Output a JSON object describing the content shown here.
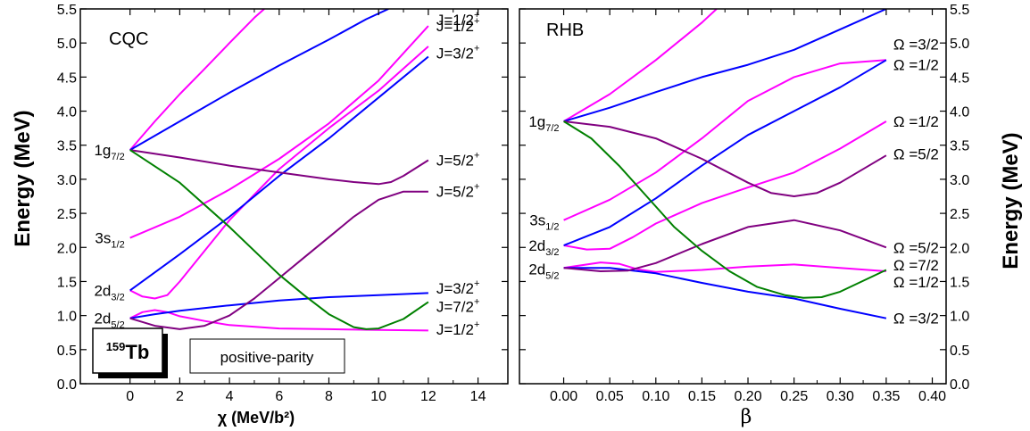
{
  "chart_data": [
    {
      "type": "line",
      "title": "CQC",
      "xlabel": "χ (MeV/b²)",
      "ylabel": "Energy (MeV)",
      "xlim": [
        -2,
        15.2
      ],
      "ylim": [
        0.0,
        5.5
      ],
      "xticks": [
        "0",
        "2",
        "4",
        "6",
        "8",
        "10",
        "12",
        "14"
      ],
      "yticks": [
        "0.0",
        "0.5",
        "1.0",
        "1.5",
        "2.0",
        "2.5",
        "3.0",
        "3.5",
        "4.0",
        "4.5",
        "5.0",
        "5.5"
      ],
      "grid": false,
      "state_labels": [
        {
          "main": "1g",
          "sub": "7/2",
          "y": 3.43
        },
        {
          "main": "3s",
          "sub": "1/2",
          "y": 2.14
        },
        {
          "main": "2d",
          "sub": "3/2",
          "y": 1.37
        },
        {
          "main": "2d",
          "sub": "5/2",
          "y": 0.96
        }
      ],
      "end_labels": [
        {
          "main": "J=1/2",
          "sup": "+",
          "y": 5.6
        },
        {
          "main": "J=1/2",
          "sup": "+",
          "y": 5.25
        },
        {
          "main": "J=3/2",
          "sup": "+",
          "y": 4.85
        },
        {
          "main": "J=5/2",
          "sup": "+",
          "y": 3.28
        },
        {
          "main": "J=5/2",
          "sup": "+",
          "y": 2.82
        },
        {
          "main": "J=3/2",
          "sup": "+",
          "y": 1.4
        },
        {
          "main": "J=7/2",
          "sup": "+",
          "y": 1.13
        },
        {
          "main": "J=1/2",
          "sup": "+",
          "y": 0.8
        }
      ],
      "annotations": {
        "nucleus_mass": "159",
        "nucleus_symbol": "Tb",
        "parity": "positive-parity"
      },
      "series": [
        {
          "color": "#ff00ff",
          "points": [
            [
              0,
              3.43
            ],
            [
              1,
              3.85
            ],
            [
              2,
              4.25
            ],
            [
              3,
              4.62
            ],
            [
              4,
              5.0
            ],
            [
              5,
              5.37
            ],
            [
              5.4,
              5.5
            ]
          ]
        },
        {
          "color": "#ff00ff",
          "points": [
            [
              0,
              2.14
            ],
            [
              2,
              2.45
            ],
            [
              4,
              2.85
            ],
            [
              6,
              3.3
            ],
            [
              8,
              3.82
            ],
            [
              10,
              4.45
            ],
            [
              12,
              5.25
            ]
          ]
        },
        {
          "color": "#ff00ff",
          "points": [
            [
              0,
              1.37
            ],
            [
              0.5,
              1.28
            ],
            [
              1,
              1.25
            ],
            [
              1.5,
              1.3
            ],
            [
              2,
              1.5
            ],
            [
              3,
              1.95
            ],
            [
              4,
              2.4
            ],
            [
              6,
              3.15
            ],
            [
              8,
              3.75
            ],
            [
              10,
              4.3
            ],
            [
              12,
              4.95
            ]
          ]
        },
        {
          "color": "#ff00ff",
          "points": [
            [
              0,
              0.96
            ],
            [
              0.5,
              1.05
            ],
            [
              1,
              1.08
            ],
            [
              1.5,
              1.05
            ],
            [
              2,
              0.99
            ],
            [
              3,
              0.92
            ],
            [
              4,
              0.86
            ],
            [
              6,
              0.81
            ],
            [
              8,
              0.8
            ],
            [
              10,
              0.79
            ],
            [
              12,
              0.78
            ]
          ]
        },
        {
          "color": "#0000ff",
          "points": [
            [
              0,
              3.43
            ],
            [
              2,
              3.85
            ],
            [
              4,
              4.27
            ],
            [
              6,
              4.67
            ],
            [
              8,
              5.05
            ],
            [
              9.5,
              5.35
            ],
            [
              10.4,
              5.5
            ]
          ]
        },
        {
          "color": "#0000ff",
          "points": [
            [
              0,
              1.37
            ],
            [
              2,
              1.9
            ],
            [
              4,
              2.45
            ],
            [
              6,
              3.05
            ],
            [
              8,
              3.6
            ],
            [
              10,
              4.2
            ],
            [
              12,
              4.8
            ]
          ]
        },
        {
          "color": "#0000ff",
          "points": [
            [
              0,
              0.96
            ],
            [
              1,
              1.02
            ],
            [
              2,
              1.07
            ],
            [
              4,
              1.15
            ],
            [
              6,
              1.22
            ],
            [
              8,
              1.27
            ],
            [
              10,
              1.3
            ],
            [
              12,
              1.33
            ]
          ]
        },
        {
          "color": "#800080",
          "points": [
            [
              0,
              3.43
            ],
            [
              2,
              3.32
            ],
            [
              4,
              3.2
            ],
            [
              6,
              3.1
            ],
            [
              8,
              3.0
            ],
            [
              9,
              2.96
            ],
            [
              10,
              2.93
            ],
            [
              10.5,
              2.96
            ],
            [
              11,
              3.05
            ],
            [
              12,
              3.28
            ]
          ]
        },
        {
          "color": "#800080",
          "points": [
            [
              0,
              0.96
            ],
            [
              1,
              0.85
            ],
            [
              2,
              0.8
            ],
            [
              3,
              0.85
            ],
            [
              4,
              1.0
            ],
            [
              5,
              1.25
            ],
            [
              6,
              1.55
            ],
            [
              7,
              1.85
            ],
            [
              8,
              2.15
            ],
            [
              9,
              2.45
            ],
            [
              10,
              2.7
            ],
            [
              11,
              2.82
            ],
            [
              12,
              2.82
            ]
          ]
        },
        {
          "color": "#008000",
          "points": [
            [
              0,
              3.43
            ],
            [
              2,
              2.95
            ],
            [
              4,
              2.3
            ],
            [
              6,
              1.6
            ],
            [
              7,
              1.3
            ],
            [
              8,
              1.02
            ],
            [
              9,
              0.83
            ],
            [
              9.5,
              0.8
            ],
            [
              10,
              0.81
            ],
            [
              11,
              0.95
            ],
            [
              12,
              1.2
            ]
          ]
        }
      ]
    },
    {
      "type": "line",
      "title": "RHB",
      "xlabel": "β",
      "ylabel": "Energy (MeV)",
      "xlim": [
        -0.048,
        0.415
      ],
      "ylim": [
        0.0,
        5.5
      ],
      "xticks": [
        "0.00",
        "0.05",
        "0.10",
        "0.15",
        "0.20",
        "0.25",
        "0.30",
        "0.35",
        "0.40"
      ],
      "yticks": [
        "0.0",
        "0.5",
        "1.0",
        "1.5",
        "2.0",
        "2.5",
        "3.0",
        "3.5",
        "4.0",
        "4.5",
        "5.0",
        "5.5"
      ],
      "grid": false,
      "state_labels": [
        {
          "main": "1g",
          "sub": "7/2",
          "y": 3.85
        },
        {
          "main": "3s",
          "sub": "1/2",
          "y": 2.4
        },
        {
          "main": "2d",
          "sub": "3/2",
          "y": 2.03
        },
        {
          "main": "2d",
          "sub": "5/2",
          "y": 1.68
        }
      ],
      "end_labels": [
        {
          "main": "Ω =3/2",
          "y": 4.98
        },
        {
          "main": "Ω =1/2",
          "y": 4.68
        },
        {
          "main": "Ω =1/2",
          "y": 3.85
        },
        {
          "main": "Ω =5/2",
          "y": 3.37
        },
        {
          "main": "Ω =5/2",
          "y": 2.0
        },
        {
          "main": "Ω =7/2",
          "y": 1.74
        },
        {
          "main": "Ω =1/2",
          "y": 1.49
        },
        {
          "main": "Ω =3/2",
          "y": 0.96
        }
      ],
      "series": [
        {
          "color": "#ff00ff",
          "points": [
            [
              0,
              3.85
            ],
            [
              0.05,
              4.25
            ],
            [
              0.1,
              4.75
            ],
            [
              0.15,
              5.3
            ],
            [
              0.166,
              5.5
            ]
          ]
        },
        {
          "color": "#ff00ff",
          "points": [
            [
              0,
              2.4
            ],
            [
              0.05,
              2.7
            ],
            [
              0.1,
              3.1
            ],
            [
              0.15,
              3.6
            ],
            [
              0.2,
              4.15
            ],
            [
              0.25,
              4.5
            ],
            [
              0.3,
              4.7
            ],
            [
              0.35,
              4.75
            ]
          ]
        },
        {
          "color": "#ff00ff",
          "points": [
            [
              0,
              2.03
            ],
            [
              0.025,
              1.97
            ],
            [
              0.05,
              1.98
            ],
            [
              0.075,
              2.15
            ],
            [
              0.1,
              2.35
            ],
            [
              0.15,
              2.65
            ],
            [
              0.2,
              2.88
            ],
            [
              0.25,
              3.1
            ],
            [
              0.3,
              3.45
            ],
            [
              0.35,
              3.85
            ]
          ]
        },
        {
          "color": "#ff00ff",
          "points": [
            [
              0,
              1.7
            ],
            [
              0.04,
              1.78
            ],
            [
              0.06,
              1.76
            ],
            [
              0.08,
              1.68
            ],
            [
              0.1,
              1.64
            ],
            [
              0.15,
              1.67
            ],
            [
              0.2,
              1.72
            ],
            [
              0.25,
              1.75
            ],
            [
              0.3,
              1.7
            ],
            [
              0.35,
              1.65
            ]
          ]
        },
        {
          "color": "#0000ff",
          "points": [
            [
              0,
              3.85
            ],
            [
              0.05,
              4.05
            ],
            [
              0.1,
              4.28
            ],
            [
              0.15,
              4.5
            ],
            [
              0.2,
              4.68
            ],
            [
              0.25,
              4.9
            ],
            [
              0.3,
              5.2
            ],
            [
              0.35,
              5.5
            ]
          ]
        },
        {
          "color": "#0000ff",
          "points": [
            [
              0,
              2.03
            ],
            [
              0.05,
              2.3
            ],
            [
              0.1,
              2.72
            ],
            [
              0.15,
              3.2
            ],
            [
              0.2,
              3.65
            ],
            [
              0.25,
              4.0
            ],
            [
              0.3,
              4.35
            ],
            [
              0.35,
              4.75
            ]
          ]
        },
        {
          "color": "#0000ff",
          "points": [
            [
              0,
              1.7
            ],
            [
              0.05,
              1.7
            ],
            [
              0.1,
              1.62
            ],
            [
              0.15,
              1.48
            ],
            [
              0.2,
              1.35
            ],
            [
              0.25,
              1.25
            ],
            [
              0.3,
              1.1
            ],
            [
              0.35,
              0.96
            ]
          ]
        },
        {
          "color": "#800080",
          "points": [
            [
              0,
              3.85
            ],
            [
              0.05,
              3.77
            ],
            [
              0.1,
              3.6
            ],
            [
              0.15,
              3.3
            ],
            [
              0.2,
              2.95
            ],
            [
              0.225,
              2.8
            ],
            [
              0.25,
              2.75
            ],
            [
              0.275,
              2.8
            ],
            [
              0.3,
              2.95
            ],
            [
              0.35,
              3.35
            ]
          ]
        },
        {
          "color": "#800080",
          "points": [
            [
              0,
              1.7
            ],
            [
              0.04,
              1.65
            ],
            [
              0.07,
              1.66
            ],
            [
              0.1,
              1.77
            ],
            [
              0.15,
              2.05
            ],
            [
              0.2,
              2.3
            ],
            [
              0.25,
              2.4
            ],
            [
              0.3,
              2.25
            ],
            [
              0.35,
              2.0
            ]
          ]
        },
        {
          "color": "#008000",
          "points": [
            [
              0,
              3.85
            ],
            [
              0.03,
              3.6
            ],
            [
              0.06,
              3.2
            ],
            [
              0.09,
              2.75
            ],
            [
              0.12,
              2.3
            ],
            [
              0.15,
              1.95
            ],
            [
              0.18,
              1.65
            ],
            [
              0.21,
              1.42
            ],
            [
              0.24,
              1.3
            ],
            [
              0.26,
              1.26
            ],
            [
              0.28,
              1.27
            ],
            [
              0.3,
              1.35
            ],
            [
              0.35,
              1.67
            ]
          ]
        }
      ]
    }
  ]
}
